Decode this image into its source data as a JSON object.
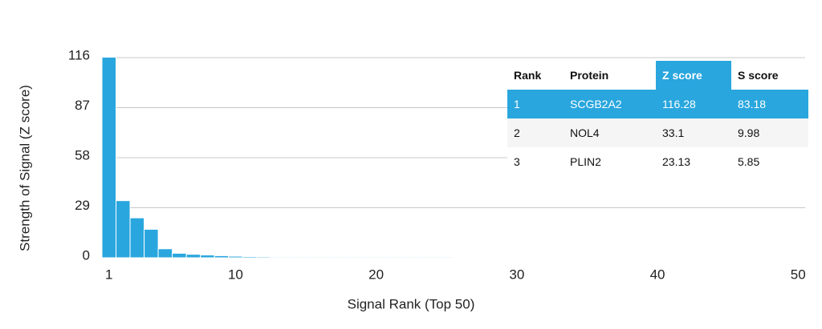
{
  "chart_data": {
    "type": "bar",
    "x_label": "Signal Rank (Top 50)",
    "y_label": "Strength of Signal (Z score)",
    "x": [
      1,
      2,
      3,
      4,
      5,
      6,
      7,
      8,
      9,
      10,
      11,
      12,
      13,
      14,
      15,
      16,
      17,
      18,
      19,
      20,
      21,
      22,
      23,
      24,
      25,
      26,
      27,
      28,
      29,
      30,
      31,
      32,
      33,
      34,
      35,
      36,
      37,
      38,
      39,
      40,
      41,
      42,
      43,
      44,
      45,
      46,
      47,
      48,
      49,
      50
    ],
    "values": [
      116.28,
      33.1,
      23.13,
      16.5,
      5.2,
      2.6,
      2,
      1.6,
      1.2,
      0.9,
      0.7,
      0.6,
      0.5,
      0.5,
      0.5,
      0.5,
      0.5,
      0.5,
      0.5,
      0.5,
      0.5,
      0.5,
      0.5,
      0.5,
      0.5,
      0.4,
      0.4,
      0.4,
      0.4,
      0.4,
      0.4,
      0.4,
      0.4,
      0.4,
      0.4,
      0.4,
      0.4,
      0.4,
      0.4,
      0.4,
      0.4,
      0.4,
      0.4,
      0.4,
      0.4,
      0.4,
      0.4,
      0.4,
      0.4,
      0.4
    ],
    "color": "#29a6de",
    "xlim": [
      0.5,
      50.5
    ],
    "xticks": [
      1,
      10,
      20,
      30,
      40,
      50
    ],
    "ylim": [
      0,
      116
    ],
    "yticks": [
      0,
      29,
      58,
      87,
      116
    ],
    "grid": true
  },
  "table": {
    "header": [
      "Rank",
      "Protein",
      "Z score",
      "S score"
    ],
    "rows": [
      [
        "1",
        "SCGB2A2",
        "116.28",
        "83.18"
      ],
      [
        "2",
        "NOL4",
        "33.1",
        "9.98"
      ],
      [
        "3",
        "PLIN2",
        "23.13",
        "5.85"
      ]
    ]
  }
}
